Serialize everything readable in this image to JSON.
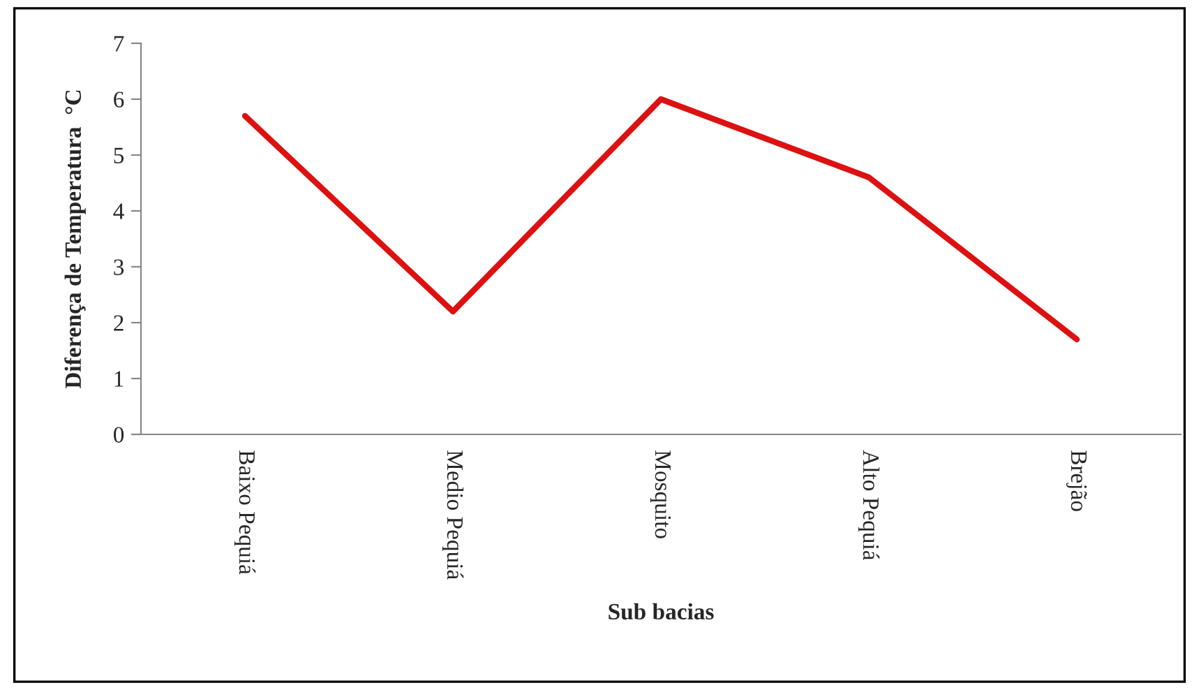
{
  "chart_data": {
    "type": "line",
    "xlabel": "Sub bacias",
    "ylabel": "Diferença de Temperatura  °C",
    "categories": [
      "Baixo Pequiá",
      "Medio Pequiá",
      "Mosquito",
      "Alto Pequiá",
      "Brejão"
    ],
    "series": [
      {
        "color": "#dd1111",
        "values": [
          5.7,
          2.2,
          6.0,
          4.6,
          1.7
        ]
      }
    ],
    "ylim": [
      0,
      7
    ],
    "yticks": [
      0,
      1,
      2,
      3,
      4,
      5,
      6,
      7
    ],
    "grid": false,
    "marker": "none",
    "line_style": "solid"
  }
}
